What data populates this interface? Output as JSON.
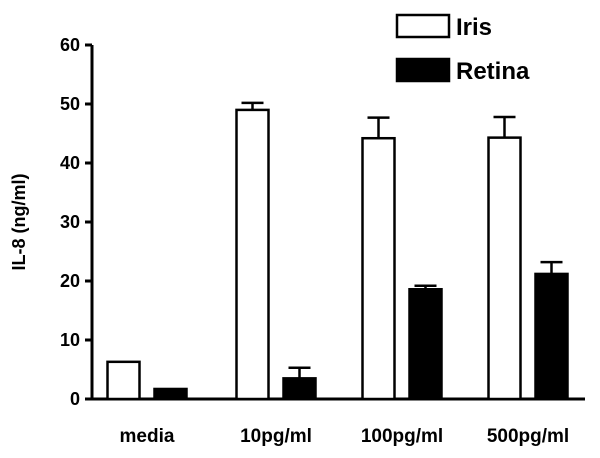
{
  "chart_data": {
    "type": "bar",
    "title": "",
    "xlabel": "",
    "ylabel": "IL-8 (ng/ml)",
    "ylim": [
      0,
      60
    ],
    "yticks": [
      0,
      10,
      20,
      30,
      40,
      50,
      60
    ],
    "categories": [
      "media",
      "10pg/ml",
      "100pg/ml",
      "500pg/ml"
    ],
    "series": [
      {
        "name": "Iris",
        "fill": "#ffffff",
        "values": [
          6.3,
          49.0,
          44.2,
          44.3
        ],
        "errors": [
          0,
          1.2,
          3.5,
          3.5
        ]
      },
      {
        "name": "Retina",
        "fill": "#000000",
        "values": [
          1.7,
          3.5,
          18.6,
          21.2
        ],
        "errors": [
          0,
          1.8,
          0.6,
          2.0
        ]
      }
    ],
    "legend": "top-right",
    "grid": false
  }
}
